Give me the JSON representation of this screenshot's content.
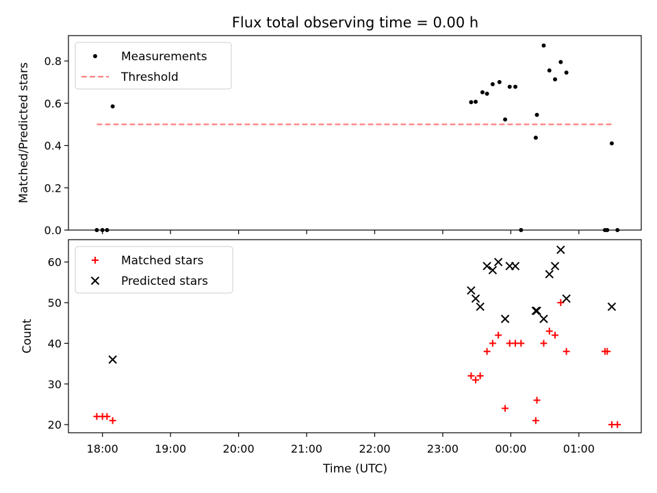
{
  "chart_data": [
    {
      "type": "scatter",
      "title": "Flux total observing time = 0.00 h",
      "ylabel": "Matched/Predicted stars",
      "xlabel": "",
      "xlim": [
        "17:30",
        "01:55"
      ],
      "ylim": [
        0,
        0.92
      ],
      "yticks": [
        "0.0",
        "0.2",
        "0.4",
        "0.6",
        "0.8"
      ],
      "legend": {
        "placement": "top-left",
        "entries": [
          "Measurements",
          "Threshold"
        ]
      },
      "series": [
        {
          "name": "Measurements",
          "color": "#000000",
          "marker": "dot",
          "points": [
            [
              "17:55",
              0.0
            ],
            [
              "18:00",
              0.0
            ],
            [
              "18:04",
              0.0
            ],
            [
              "18:09",
              0.585
            ],
            [
              "23:25",
              0.605
            ],
            [
              "23:29",
              0.607
            ],
            [
              "23:35",
              0.652
            ],
            [
              "23:39",
              0.645
            ],
            [
              "23:44",
              0.69
            ],
            [
              "23:50",
              0.7
            ],
            [
              "23:55",
              0.523
            ],
            [
              "23:59",
              0.678
            ],
            [
              "00:04",
              0.678
            ],
            [
              "00:09",
              0.0
            ],
            [
              "00:22",
              0.437
            ],
            [
              "00:23",
              0.545
            ],
            [
              "00:29",
              0.873
            ],
            [
              "00:34",
              0.755
            ],
            [
              "00:39",
              0.713
            ],
            [
              "00:44",
              0.795
            ],
            [
              "00:49",
              0.745
            ],
            [
              "01:23",
              0.0
            ],
            [
              "01:25",
              0.0
            ],
            [
              "01:29",
              0.41
            ],
            [
              "01:34",
              0.0
            ]
          ]
        },
        {
          "name": "Threshold",
          "color": "#ff7f7f",
          "style": "dashed",
          "points": [
            [
              "17:55",
              0.5
            ],
            [
              "01:30",
              0.5
            ]
          ]
        }
      ]
    },
    {
      "type": "scatter",
      "title": "",
      "ylabel": "Count",
      "xlabel": "Time (UTC)",
      "xlim": [
        "17:30",
        "01:55"
      ],
      "ylim": [
        18,
        65.5
      ],
      "yticks": [
        "20",
        "30",
        "40",
        "50",
        "60"
      ],
      "xticks": [
        "18:00",
        "19:00",
        "20:00",
        "21:00",
        "22:00",
        "23:00",
        "00:00",
        "01:00"
      ],
      "legend": {
        "placement": "top-left",
        "entries": [
          "Matched stars",
          "Predicted stars"
        ]
      },
      "series": [
        {
          "name": "Matched stars",
          "color": "#ff0000",
          "marker": "plus",
          "points": [
            [
              "17:55",
              22
            ],
            [
              "18:00",
              22
            ],
            [
              "18:04",
              22
            ],
            [
              "18:09",
              21
            ],
            [
              "23:25",
              32
            ],
            [
              "23:29",
              31
            ],
            [
              "23:33",
              32
            ],
            [
              "23:39",
              38
            ],
            [
              "23:44",
              40
            ],
            [
              "23:49",
              42
            ],
            [
              "23:55",
              24
            ],
            [
              "23:59",
              40
            ],
            [
              "00:04",
              40
            ],
            [
              "00:09",
              40
            ],
            [
              "00:22",
              21
            ],
            [
              "00:23",
              26
            ],
            [
              "00:29",
              40
            ],
            [
              "00:34",
              43
            ],
            [
              "00:39",
              42
            ],
            [
              "00:44",
              50
            ],
            [
              "00:49",
              38
            ],
            [
              "01:23",
              38
            ],
            [
              "01:25",
              38
            ],
            [
              "01:29",
              20
            ],
            [
              "01:34",
              20
            ]
          ]
        },
        {
          "name": "Predicted stars",
          "color": "#000000",
          "marker": "x",
          "points": [
            [
              "18:09",
              36
            ],
            [
              "23:25",
              53
            ],
            [
              "23:29",
              51
            ],
            [
              "23:33",
              49
            ],
            [
              "23:39",
              59
            ],
            [
              "23:44",
              58
            ],
            [
              "23:49",
              60
            ],
            [
              "23:55",
              46
            ],
            [
              "23:59",
              59
            ],
            [
              "00:04",
              59
            ],
            [
              "00:22",
              48
            ],
            [
              "00:23",
              48
            ],
            [
              "00:29",
              46
            ],
            [
              "00:34",
              57
            ],
            [
              "00:39",
              59
            ],
            [
              "00:44",
              63
            ],
            [
              "00:49",
              51
            ],
            [
              "01:29",
              49
            ]
          ]
        }
      ]
    }
  ]
}
